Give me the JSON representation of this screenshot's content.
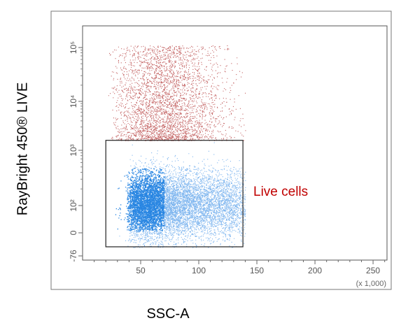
{
  "figure": {
    "y_axis_title": "RayBright 450® LIVE",
    "x_axis_title": "SSC-A",
    "gate_label": "Live cells",
    "x_multiplier_label": "(x 1,000)"
  },
  "chart_data": {
    "type": "scatter",
    "title": "",
    "xlabel": "SSC-A",
    "ylabel": "RayBright 450® LIVE",
    "x_scale": "linear",
    "y_scale": "biexponential",
    "xlim": [
      0,
      262
    ],
    "x_ticks": [
      50,
      100,
      150,
      200,
      250
    ],
    "x_tick_labels": [
      "50",
      "100",
      "150",
      "200",
      "250"
    ],
    "y_ticks": [
      -76,
      0,
      100,
      1000,
      10000,
      100000
    ],
    "y_tick_labels": [
      "-76",
      "0",
      "10²",
      "10³",
      "10⁴",
      "10⁵"
    ],
    "grid": false,
    "series": [
      {
        "color": "#b03030",
        "description_points": [
          {
            "x": 40,
            "y": 5000
          },
          {
            "x": 45,
            "y": 2500
          },
          {
            "x": 50,
            "y": 20000
          },
          {
            "x": 60,
            "y": 8000
          },
          {
            "x": 70,
            "y": 3000
          },
          {
            "x": 80,
            "y": 30000
          },
          {
            "x": 90,
            "y": 12000
          },
          {
            "x": 100,
            "y": 4000
          },
          {
            "x": 110,
            "y": 2000
          },
          {
            "x": 120,
            "y": 6000
          },
          {
            "x": 130,
            "y": 15000
          },
          {
            "x": 140,
            "y": 40000
          }
        ],
        "x_range": [
          22,
          140
        ],
        "y_range": [
          1600,
          110000
        ]
      },
      {
        "color": "#1e7fe0",
        "description_points": [
          {
            "x": 35,
            "y": 150
          },
          {
            "x": 40,
            "y": 300
          },
          {
            "x": 45,
            "y": 80
          },
          {
            "x": 50,
            "y": 200
          },
          {
            "x": 60,
            "y": 120
          },
          {
            "x": 70,
            "y": 400
          },
          {
            "x": 80,
            "y": 60
          },
          {
            "x": 90,
            "y": 250
          },
          {
            "x": 100,
            "y": 150
          },
          {
            "x": 115,
            "y": 500
          },
          {
            "x": 130,
            "y": 90
          },
          {
            "x": 140,
            "y": 300
          }
        ],
        "x_range": [
          22,
          140
        ],
        "y_range": [
          -76,
          1500
        ]
      }
    ],
    "gates": [
      {
        "label": "Live cells",
        "x_range": [
          20,
          138
        ],
        "y_range": [
          -76,
          1600
        ]
      }
    ]
  }
}
